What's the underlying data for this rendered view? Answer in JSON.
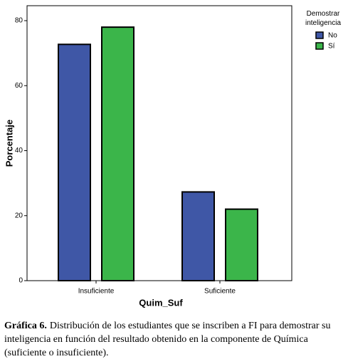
{
  "chart_data": {
    "type": "bar",
    "x_label": "Quim_Suf",
    "y_label": "Porcentaje",
    "categories": [
      "Insuficiente",
      "Suficiente"
    ],
    "series": [
      {
        "name": "No",
        "color": "#3f57a6",
        "values": [
          72.7,
          27.3
        ]
      },
      {
        "name": "Sí",
        "color": "#3bb54a",
        "values": [
          78,
          22
        ]
      }
    ],
    "legend_title": "Demostrar inteligencia",
    "ylim": [
      0,
      84.6
    ],
    "yticks": [
      0,
      20,
      40,
      60,
      80
    ]
  },
  "caption": {
    "label": "Gráfica 6.",
    "text": "Distribución de los estudiantes que se inscriben a FI para demostrar su inteligencia en función del resultado obtenido en la componente de Química (suficiente o insuficiente)."
  }
}
